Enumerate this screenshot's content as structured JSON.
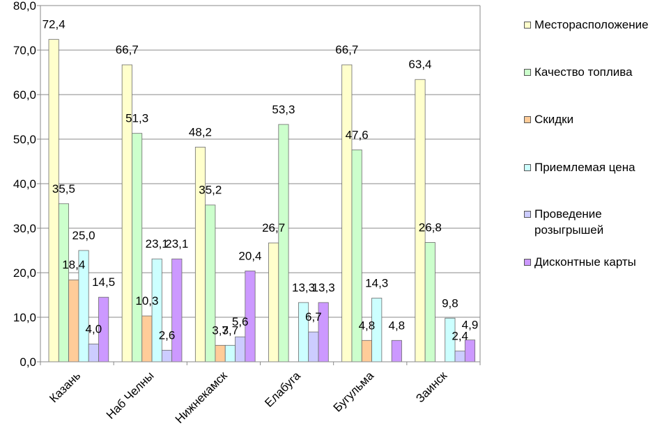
{
  "chart_data": {
    "type": "bar",
    "categories": [
      "Казань",
      "Наб Челны",
      "Нижнекамск",
      "Елабуга",
      "Бугульма",
      "Заинск"
    ],
    "series": [
      {
        "name": "Месторасположение",
        "color": "#ffffcc",
        "values": [
          72.4,
          66.7,
          48.2,
          26.7,
          66.7,
          63.4
        ]
      },
      {
        "name": "Качество топлива",
        "color": "#ccffcc",
        "values": [
          35.5,
          51.3,
          35.2,
          53.3,
          47.6,
          26.8
        ]
      },
      {
        "name": "Скидки",
        "color": "#ffcc99",
        "values": [
          18.4,
          10.3,
          3.7,
          null,
          4.8,
          null
        ]
      },
      {
        "name": "Приемлемая цена",
        "color": "#ccffff",
        "values": [
          25.0,
          23.1,
          3.7,
          13.3,
          14.3,
          9.8
        ]
      },
      {
        "name": "Проведение розыгрышей",
        "color": "#ccccff",
        "values": [
          4.0,
          2.6,
          5.6,
          6.7,
          null,
          2.4
        ]
      },
      {
        "name": "Дисконтные карты",
        "color": "#cc99ff",
        "values": [
          14.5,
          23.1,
          20.4,
          13.3,
          4.8,
          4.9
        ]
      }
    ],
    "value_labels": [
      [
        "72,4",
        "66,7",
        "48,2",
        "26,7",
        "66,7",
        "63,4"
      ],
      [
        "35,5",
        "51,3",
        "35,2",
        "53,3",
        "47,6",
        "26,8"
      ],
      [
        "18,4",
        "10,3",
        "3,7",
        "",
        "4,8",
        ""
      ],
      [
        "25,0",
        "23,1",
        "3,7",
        "13,3",
        "14,3",
        "9,8"
      ],
      [
        "4,0",
        "2,6",
        "5,6",
        "6,7",
        "",
        "2,4"
      ],
      [
        "14,5",
        "23,1",
        "20,4",
        "13,3",
        "4,8",
        "4,9"
      ]
    ],
    "y_ticks": [
      "0,0",
      "10,0",
      "20,0",
      "30,0",
      "40,0",
      "50,0",
      "60,0",
      "70,0",
      "80,0"
    ],
    "ylim": [
      0,
      80
    ],
    "y_tick_step": 10,
    "grid": true,
    "legend_position": "right",
    "xlabel": "",
    "ylabel": "",
    "title": ""
  }
}
